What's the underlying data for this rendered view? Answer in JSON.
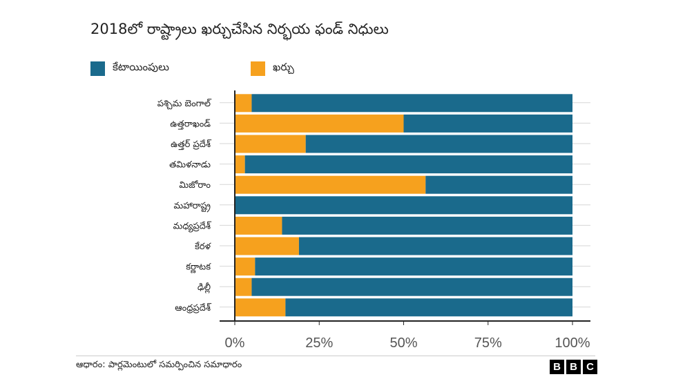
{
  "title": "2018లో రాష్ట్రాలు ఖర్చుచేసిన నిర్భయ ఫండ్ నిధులు",
  "colors": {
    "allocation": "#1a6a8c",
    "expenditure": "#f6a11e",
    "grid": "#d6d6d6",
    "axis": "#222222",
    "tick_text": "#555555"
  },
  "legend": {
    "allocation_label": "కేటాయింపులు",
    "expenditure_label": "ఖర్చు"
  },
  "source": "ఆధారం: పార్లమెంటులో సమర్పించిన సమాధారం",
  "logo": {
    "letters": [
      "B",
      "B",
      "C"
    ]
  },
  "chart_data": {
    "type": "bar",
    "orientation": "horizontal",
    "stacked": true,
    "categories": [
      "పశ్చిమ బెంగాల్",
      "ఉత్తరాఖండ్",
      "ఉత్తర్ ప్రదేశ్",
      "తమిళనాడు",
      "మిజోరాం",
      "మహారాష్ట్ర",
      "మధ్యప్రదేశ్",
      "కేరళ",
      "కర్ణాటక",
      "ఢిల్లీ",
      "ఆంధ్రప్రదేశ్"
    ],
    "series": [
      {
        "name": "ఖర్చు",
        "values": [
          5,
          50,
          21,
          3,
          56.5,
          0,
          14,
          19,
          6,
          5,
          15
        ]
      },
      {
        "name": "కేటాయింపులు",
        "values": [
          95,
          50,
          79,
          97,
          43.5,
          100,
          86,
          81,
          94,
          95,
          85
        ]
      }
    ],
    "x_ticks": [
      "0%",
      "25%",
      "50%",
      "75%",
      "100%"
    ],
    "xlim": [
      0,
      100
    ],
    "grid": true,
    "legend_position": "top-left"
  }
}
